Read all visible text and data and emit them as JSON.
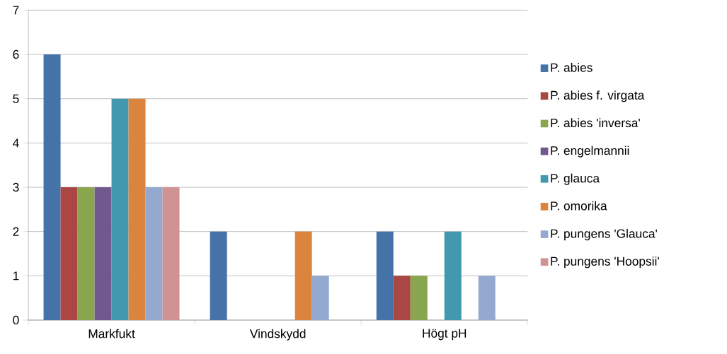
{
  "chart_data": {
    "type": "bar",
    "categories": [
      "Markfukt",
      "Vindskydd",
      "Högt pH"
    ],
    "series": [
      {
        "name": "P. abies",
        "color": "#4572a7",
        "values": [
          6,
          2,
          2
        ]
      },
      {
        "name": "P. abies f. virgata",
        "color": "#aa4643",
        "values": [
          3,
          0,
          1
        ]
      },
      {
        "name": "P. abies 'inversa'",
        "color": "#89a54e",
        "values": [
          3,
          0,
          1
        ]
      },
      {
        "name": "P. engelmannii",
        "color": "#71588f",
        "values": [
          3,
          0,
          0
        ]
      },
      {
        "name": "P. glauca",
        "color": "#4198af",
        "values": [
          5,
          0,
          2
        ]
      },
      {
        "name": "P. omorika",
        "color": "#db843d",
        "values": [
          5,
          2,
          0
        ]
      },
      {
        "name": "P. pungens 'Glauca'",
        "color": "#93a9cf",
        "values": [
          3,
          1,
          1
        ]
      },
      {
        "name": "P. pungens 'Hoopsii'",
        "color": "#d19392",
        "values": [
          3,
          0,
          0
        ]
      }
    ],
    "ylim": [
      0,
      7
    ],
    "yticks": [
      0,
      1,
      2,
      3,
      4,
      5,
      6,
      7
    ],
    "grid": "y",
    "legend": "right"
  }
}
